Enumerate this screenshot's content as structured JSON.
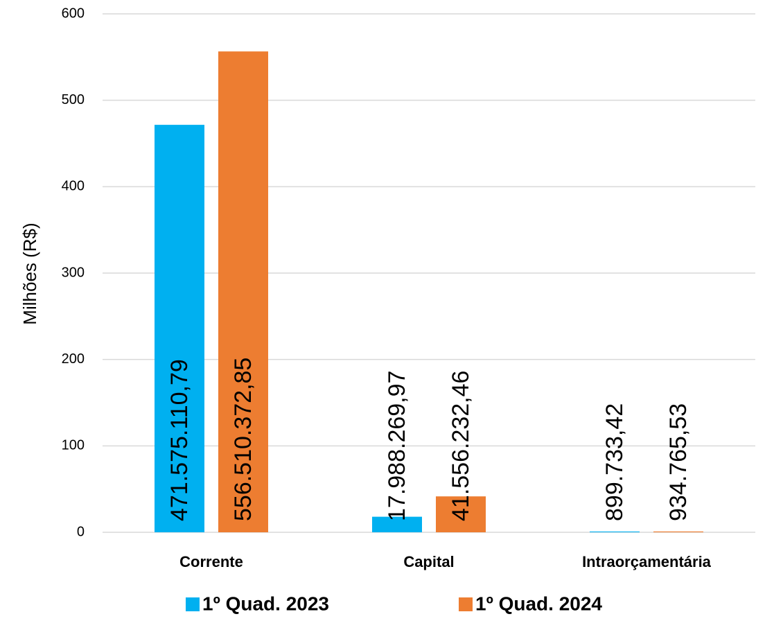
{
  "chart_data": {
    "type": "bar",
    "y_label": "Milhões (R$)",
    "categories": [
      "Corrente",
      "Capital",
      "Intraorçamentária"
    ],
    "series": [
      {
        "name": "1º Quad. 2023",
        "color": "#00b0f0",
        "values": [
          471.57511079,
          17.98826997,
          0.89973342
        ],
        "value_labels": [
          "471.575.110,79",
          "17.988.269,97",
          "899.733,42"
        ]
      },
      {
        "name": "1º Quad. 2024",
        "color": "#ed7d31",
        "values": [
          556.51037285,
          41.55623246,
          0.93476553
        ],
        "value_labels": [
          "556.510.372,85",
          "41.556.232,46",
          "934.765,53"
        ]
      }
    ],
    "ylim": [
      0,
      600
    ],
    "yticks": [
      0,
      100,
      200,
      300,
      400,
      500,
      600
    ],
    "grid": true,
    "legend": "bottom"
  }
}
